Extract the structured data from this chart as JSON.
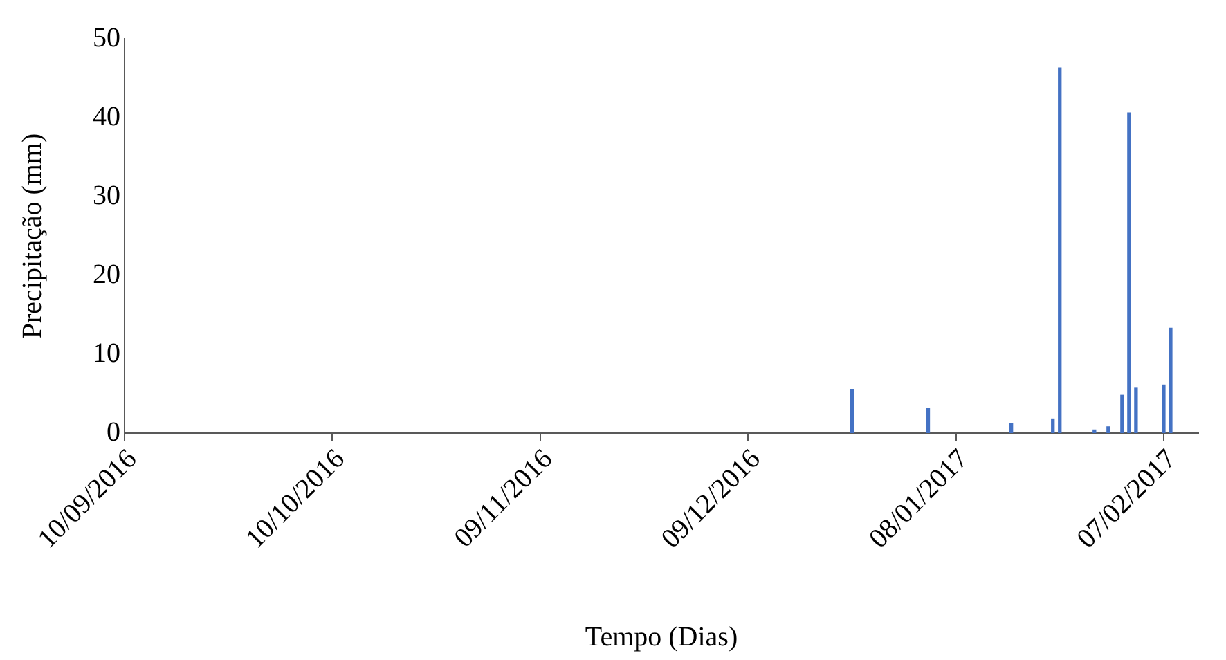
{
  "chart_data": {
    "type": "bar",
    "xlabel": "Tempo (Dias)",
    "ylabel": "Precipitação (mm)",
    "x": [
      "2016-12-24",
      "2017-01-04",
      "2017-01-16",
      "2017-01-22",
      "2017-01-23",
      "2017-01-28",
      "2017-01-30",
      "2017-02-01",
      "2017-02-02",
      "2017-02-03",
      "2017-02-07",
      "2017-02-08"
    ],
    "values": [
      5.5,
      3.1,
      1.2,
      1.8,
      46.3,
      0.4,
      0.8,
      4.8,
      40.6,
      5.7,
      6.1,
      13.3
    ],
    "color": "#4472c4",
    "xlim": [
      "2016-09-10",
      "2017-02-12"
    ],
    "xticks": [
      {
        "value": "2016-09-10",
        "label": "10/09/2016"
      },
      {
        "value": "2016-10-10",
        "label": "10/10/2016"
      },
      {
        "value": "2016-11-09",
        "label": "09/11/2016"
      },
      {
        "value": "2016-12-09",
        "label": "09/12/2016"
      },
      {
        "value": "2017-01-08",
        "label": "08/01/2017"
      },
      {
        "value": "2017-02-07",
        "label": "07/02/2017"
      }
    ],
    "ylim": [
      0,
      50
    ],
    "yticks": [
      0,
      10,
      20,
      30,
      40,
      50
    ],
    "grid": false,
    "legend": false
  }
}
